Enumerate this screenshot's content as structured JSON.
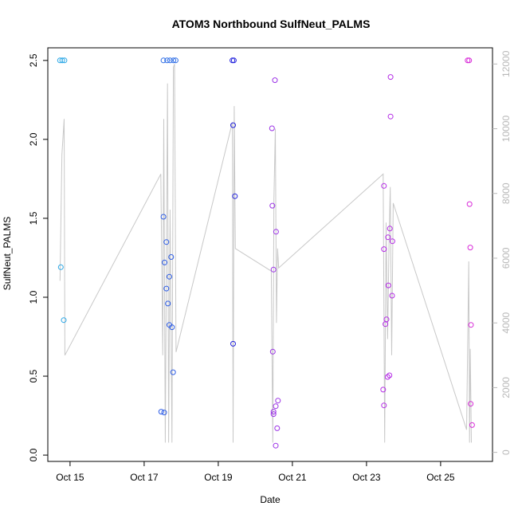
{
  "chart_data": {
    "type": "scatter",
    "title": "ATOM3 Northbound SulfNeut_PALMS",
    "xlabel": "Date",
    "ylabel": "SulfNeut_PALMS",
    "x_range_days": [
      14.4,
      26.4
    ],
    "ylim": [
      -0.04,
      2.58
    ],
    "y_ticks": [
      0.0,
      0.5,
      1.0,
      1.5,
      2.0,
      2.5
    ],
    "y_tick_labels": [
      "0.0",
      "0.5",
      "1.0",
      "1.5",
      "2.0",
      "2.5"
    ],
    "x_ticks": [
      {
        "day": 15,
        "label": "Oct 15"
      },
      {
        "day": 17,
        "label": "Oct 17"
      },
      {
        "day": 19,
        "label": "Oct 19"
      },
      {
        "day": 21,
        "label": "Oct 21"
      },
      {
        "day": 23,
        "label": "Oct 23"
      },
      {
        "day": 25,
        "label": "Oct 25"
      }
    ],
    "y2lim": [
      -280,
      12500
    ],
    "y2_ticks": [
      0,
      2000,
      4000,
      6000,
      8000,
      10000,
      12000
    ],
    "y2_tick_labels": [
      "0",
      "2000",
      "4000",
      "6000",
      "8000",
      "10000",
      "12000"
    ],
    "colors": {
      "axis": "#000000",
      "altitude_line": "#c8c8c8",
      "right_axis": "#b8b8b8"
    },
    "points": [
      {
        "day": 14.73,
        "y": 2.5,
        "color": "#2aa7e6"
      },
      {
        "day": 14.79,
        "y": 2.5,
        "color": "#2aa7e6"
      },
      {
        "day": 14.85,
        "y": 2.5,
        "color": "#2aa7e6"
      },
      {
        "day": 14.75,
        "y": 1.19,
        "color": "#2aa7e6"
      },
      {
        "day": 14.83,
        "y": 0.855,
        "color": "#2aa7e6"
      },
      {
        "day": 17.52,
        "y": 2.5,
        "color": "#2f6ee6"
      },
      {
        "day": 17.62,
        "y": 2.5,
        "color": "#2f6ee6"
      },
      {
        "day": 17.7,
        "y": 2.5,
        "color": "#2f6ee6"
      },
      {
        "day": 17.79,
        "y": 2.5,
        "color": "#2f6ee6"
      },
      {
        "day": 17.85,
        "y": 2.5,
        "color": "#2f6ee6"
      },
      {
        "day": 17.52,
        "y": 1.51,
        "color": "#2f5ee6"
      },
      {
        "day": 17.6,
        "y": 1.35,
        "color": "#2f5ee6"
      },
      {
        "day": 17.73,
        "y": 1.255,
        "color": "#2f5ee6"
      },
      {
        "day": 17.55,
        "y": 1.22,
        "color": "#2f5ee6"
      },
      {
        "day": 17.68,
        "y": 1.13,
        "color": "#2f5ee6"
      },
      {
        "day": 17.6,
        "y": 1.055,
        "color": "#2f5ee6"
      },
      {
        "day": 17.64,
        "y": 0.96,
        "color": "#2f5ee6"
      },
      {
        "day": 17.68,
        "y": 0.825,
        "color": "#2f5ee6"
      },
      {
        "day": 17.75,
        "y": 0.81,
        "color": "#2f5ee6"
      },
      {
        "day": 17.78,
        "y": 0.525,
        "color": "#2f5ee6"
      },
      {
        "day": 17.46,
        "y": 0.275,
        "color": "#2f5ee6"
      },
      {
        "day": 17.54,
        "y": 0.27,
        "color": "#2f5ee6"
      },
      {
        "day": 19.38,
        "y": 2.5,
        "color": "#2222dd"
      },
      {
        "day": 19.42,
        "y": 2.5,
        "color": "#2222dd"
      },
      {
        "day": 19.4,
        "y": 2.09,
        "color": "#2222dd"
      },
      {
        "day": 19.45,
        "y": 1.64,
        "color": "#2222dd"
      },
      {
        "day": 19.4,
        "y": 0.705,
        "color": "#2222dd"
      },
      {
        "day": 20.53,
        "y": 2.375,
        "color": "#9b32e6"
      },
      {
        "day": 20.45,
        "y": 2.07,
        "color": "#9b32e6"
      },
      {
        "day": 20.46,
        "y": 1.58,
        "color": "#9b32e6"
      },
      {
        "day": 20.56,
        "y": 1.415,
        "color": "#9b32e6"
      },
      {
        "day": 20.49,
        "y": 1.175,
        "color": "#9b32e6"
      },
      {
        "day": 20.47,
        "y": 0.655,
        "color": "#9b32e6"
      },
      {
        "day": 20.61,
        "y": 0.345,
        "color": "#9b32e6"
      },
      {
        "day": 20.55,
        "y": 0.31,
        "color": "#9b32e6"
      },
      {
        "day": 20.49,
        "y": 0.275,
        "color": "#9b32e6"
      },
      {
        "day": 20.49,
        "y": 0.26,
        "color": "#9b32e6"
      },
      {
        "day": 20.59,
        "y": 0.17,
        "color": "#9b32e6"
      },
      {
        "day": 20.55,
        "y": 0.06,
        "color": "#9b32e6"
      },
      {
        "day": 23.65,
        "y": 2.395,
        "color": "#b52ce6"
      },
      {
        "day": 23.65,
        "y": 2.145,
        "color": "#b52ce6"
      },
      {
        "day": 23.47,
        "y": 1.705,
        "color": "#b52ce6"
      },
      {
        "day": 23.63,
        "y": 1.435,
        "color": "#b52ce6"
      },
      {
        "day": 23.7,
        "y": 1.355,
        "color": "#b52ce6"
      },
      {
        "day": 23.58,
        "y": 1.38,
        "color": "#b52ce6"
      },
      {
        "day": 23.47,
        "y": 1.305,
        "color": "#b52ce6"
      },
      {
        "day": 23.59,
        "y": 1.075,
        "color": "#b52ce6"
      },
      {
        "day": 23.69,
        "y": 1.01,
        "color": "#b52ce6"
      },
      {
        "day": 23.54,
        "y": 0.86,
        "color": "#b52ce6"
      },
      {
        "day": 23.51,
        "y": 0.83,
        "color": "#b52ce6"
      },
      {
        "day": 23.62,
        "y": 0.505,
        "color": "#b52ce6"
      },
      {
        "day": 23.57,
        "y": 0.495,
        "color": "#b52ce6"
      },
      {
        "day": 23.45,
        "y": 0.415,
        "color": "#b52ce6"
      },
      {
        "day": 23.47,
        "y": 0.315,
        "color": "#b52ce6"
      },
      {
        "day": 25.73,
        "y": 2.5,
        "color": "#d82ad8"
      },
      {
        "day": 25.77,
        "y": 2.5,
        "color": "#d82ad8"
      },
      {
        "day": 25.78,
        "y": 1.59,
        "color": "#d82ad8"
      },
      {
        "day": 25.8,
        "y": 1.315,
        "color": "#d82ad8"
      },
      {
        "day": 25.82,
        "y": 0.825,
        "color": "#d82ad8"
      },
      {
        "day": 25.81,
        "y": 0.325,
        "color": "#d82ad8"
      },
      {
        "day": 25.85,
        "y": 0.19,
        "color": "#d82ad8"
      }
    ],
    "altitude_series": [
      {
        "day": 14.73,
        "alt": 5300
      },
      {
        "day": 14.78,
        "alt": 9200
      },
      {
        "day": 14.84,
        "alt": 10300
      },
      {
        "day": 14.86,
        "alt": 3000
      },
      {
        "day": 17.45,
        "alt": 8600
      },
      {
        "day": 17.5,
        "alt": 3000
      },
      {
        "day": 17.53,
        "alt": 10300
      },
      {
        "day": 17.57,
        "alt": 300
      },
      {
        "day": 17.63,
        "alt": 11400
      },
      {
        "day": 17.66,
        "alt": 300
      },
      {
        "day": 17.7,
        "alt": 7500
      },
      {
        "day": 17.75,
        "alt": 300
      },
      {
        "day": 17.79,
        "alt": 11900
      },
      {
        "day": 17.82,
        "alt": 12000
      },
      {
        "day": 17.86,
        "alt": 3100
      },
      {
        "day": 19.38,
        "alt": 10200
      },
      {
        "day": 19.4,
        "alt": 300
      },
      {
        "day": 19.43,
        "alt": 10700
      },
      {
        "day": 19.46,
        "alt": 6300
      },
      {
        "day": 20.43,
        "alt": 5600
      },
      {
        "day": 20.47,
        "alt": 300
      },
      {
        "day": 20.5,
        "alt": 7800
      },
      {
        "day": 20.54,
        "alt": 10000
      },
      {
        "day": 20.57,
        "alt": 4000
      },
      {
        "day": 20.6,
        "alt": 6300
      },
      {
        "day": 20.63,
        "alt": 5700
      },
      {
        "day": 23.45,
        "alt": 8600
      },
      {
        "day": 23.49,
        "alt": 300
      },
      {
        "day": 23.53,
        "alt": 7100
      },
      {
        "day": 23.57,
        "alt": 3500
      },
      {
        "day": 23.61,
        "alt": 6700
      },
      {
        "day": 23.64,
        "alt": 8200
      },
      {
        "day": 23.68,
        "alt": 3000
      },
      {
        "day": 23.72,
        "alt": 7700
      },
      {
        "day": 25.7,
        "alt": 700
      },
      {
        "day": 25.76,
        "alt": 5900
      },
      {
        "day": 25.78,
        "alt": 300
      },
      {
        "day": 25.8,
        "alt": 3200
      },
      {
        "day": 25.83,
        "alt": 300
      }
    ]
  }
}
